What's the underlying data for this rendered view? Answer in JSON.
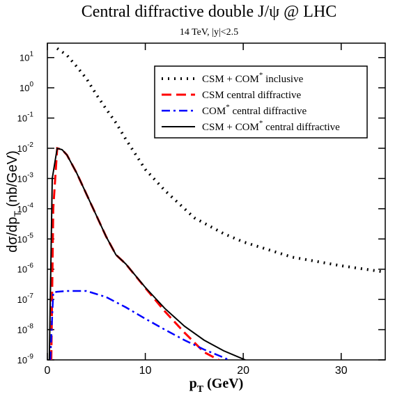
{
  "chart_data": {
    "type": "line",
    "title": "Central diffractive double J/ψ  @ LHC",
    "subtitle": "14 TeV, |y|<2.5",
    "x_label": {
      "main": "p",
      "sub": "T",
      "tail": " (GeV)"
    },
    "y_label": {
      "main": "dσ/dp",
      "sub": "T",
      "tail": " (nb/GeV)"
    },
    "xlim": [
      0,
      34.5
    ],
    "ylim": [
      1e-09,
      30
    ],
    "log_y": true,
    "xticks": [
      0,
      10,
      20,
      30
    ],
    "yticks": [
      {
        "value": 1e-09,
        "label": "10",
        "exponent": "-9"
      },
      {
        "value": 1e-08,
        "label": "10",
        "exponent": "-8"
      },
      {
        "value": 1e-07,
        "label": "10",
        "exponent": "-7"
      },
      {
        "value": 1e-06,
        "label": "10",
        "exponent": "-6"
      },
      {
        "value": 1e-05,
        "label": "10",
        "exponent": "-5"
      },
      {
        "value": 0.0001,
        "label": "10",
        "exponent": "-4"
      },
      {
        "value": 0.001,
        "label": "10",
        "exponent": "-3"
      },
      {
        "value": 0.01,
        "label": "10",
        "exponent": "-2"
      },
      {
        "value": 0.1,
        "label": "10",
        "exponent": "-1"
      },
      {
        "value": 1,
        "label": "10",
        "exponent": "0"
      },
      {
        "value": 10,
        "label": "10",
        "exponent": "1"
      }
    ],
    "legend": "upper right",
    "series": [
      {
        "name": "CSM + COM* inclusive",
        "color": "#000000",
        "dash": "dotted",
        "x": [
          1,
          2,
          3,
          4,
          5,
          6,
          7,
          8,
          10,
          12,
          15,
          18,
          20,
          25,
          30,
          34.5
        ],
        "values": [
          20,
          12,
          5,
          2,
          0.6,
          0.2,
          0.07,
          0.02,
          0.002,
          0.0004,
          5e-05,
          1.5e-05,
          8e-06,
          2.5e-06,
          1.3e-06,
          8e-07
        ]
      },
      {
        "name": "CSM central diffractive",
        "color": "#ff0000",
        "dash": "dashed",
        "x": [
          0.4,
          0.6,
          1,
          1.5,
          2,
          3,
          4,
          5,
          6,
          7,
          8,
          10,
          12,
          14,
          16,
          17.5
        ],
        "values": [
          1e-09,
          0.0001,
          0.01,
          0.009,
          0.006,
          0.0015,
          0.0003,
          6e-05,
          1.2e-05,
          3e-06,
          1.5e-06,
          2.4e-07,
          4e-08,
          8e-09,
          1.8e-09,
          1e-09
        ]
      },
      {
        "name": "COM* central diffractive",
        "color": "#0000ff",
        "dash": "dashdot",
        "x": [
          0.3,
          0.6,
          1,
          2,
          4,
          6,
          8,
          10,
          12,
          14,
          16,
          18,
          18.5
        ],
        "values": [
          1e-09,
          1.7e-07,
          1.8e-07,
          1.9e-07,
          1.9e-07,
          1.2e-07,
          5.5e-08,
          2.3e-08,
          1e-08,
          4.5e-09,
          2.2e-09,
          1.2e-09,
          1e-09
        ]
      },
      {
        "name": "CSM + COM* central diffractive",
        "color": "#000000",
        "dash": "solid",
        "x": [
          0.2,
          0.5,
          1,
          1.5,
          2,
          3,
          4,
          5,
          6,
          7,
          8,
          10,
          12,
          14,
          16,
          18,
          20.2
        ],
        "values": [
          1e-09,
          0.001,
          0.01,
          0.009,
          0.006,
          0.0015,
          0.0003,
          6e-05,
          1.2e-05,
          3e-06,
          1.5e-06,
          2.5e-07,
          5e-08,
          1.3e-08,
          4.5e-09,
          2e-09,
          1e-09
        ]
      }
    ]
  }
}
